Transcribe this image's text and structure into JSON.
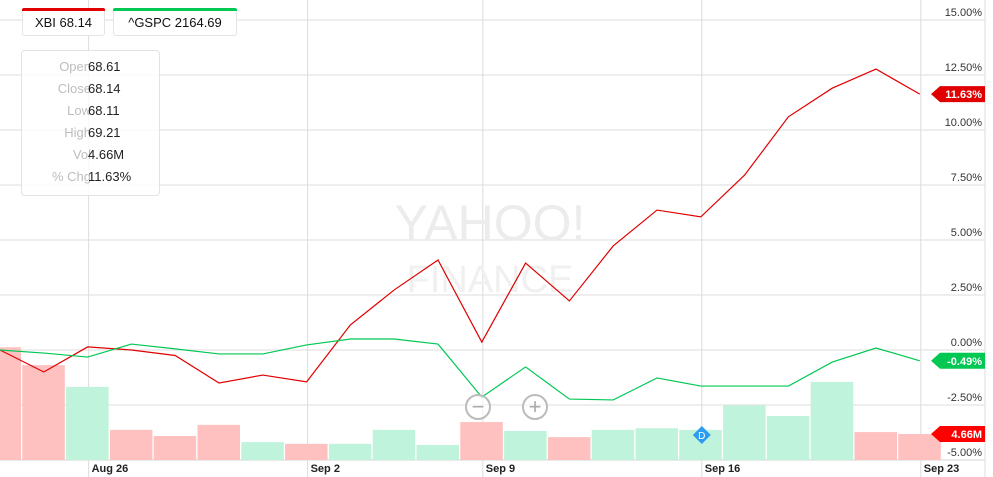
{
  "legend": [
    {
      "label": "XBI 68.14",
      "color": "#e00000"
    },
    {
      "label": "^GSPC 2164.69",
      "color": "#00c853"
    }
  ],
  "tooltip": [
    {
      "key": "Open",
      "value": "68.61"
    },
    {
      "key": "Close",
      "value": "68.14"
    },
    {
      "key": "Low",
      "value": "68.11"
    },
    {
      "key": "High",
      "value": "69.21"
    },
    {
      "key": "Vol",
      "value": "4.66M"
    },
    {
      "key": "% Chg",
      "value": "11.63%"
    }
  ],
  "watermark": {
    "line1": "YAHOO!",
    "line2": "FINANCE"
  },
  "controls": {
    "zoom_out": "−",
    "zoom_in": "+",
    "dividend_marker": "D"
  },
  "chart_data": {
    "type": "line",
    "x": [
      "Aug 24",
      "Aug 25",
      "Aug 26",
      "Aug 29",
      "Aug 30",
      "Aug 31",
      "Sep 1",
      "Sep 2",
      "Sep 6",
      "Sep 7",
      "Sep 8",
      "Sep 9",
      "Sep 12",
      "Sep 13",
      "Sep 14",
      "Sep 15",
      "Sep 16",
      "Sep 19",
      "Sep 20",
      "Sep 21",
      "Sep 22",
      "Sep 23"
    ],
    "xticks": [
      "Aug 26",
      "Sep 2",
      "Sep 9",
      "Sep 16",
      "Sep 23"
    ],
    "yticks": [
      "15.00%",
      "12.50%",
      "10.00%",
      "7.50%",
      "5.00%",
      "2.50%",
      "0.00%",
      "-2.50%",
      "-5.00%"
    ],
    "ylim": [
      -5,
      15
    ],
    "grid": true,
    "series": [
      {
        "name": "XBI",
        "color": "#e00000",
        "values": [
          0,
          -1.0,
          0.14,
          0,
          -0.25,
          -1.5,
          -1.14,
          -1.45,
          1.14,
          2.73,
          4.09,
          0.36,
          3.95,
          2.23,
          4.73,
          6.36,
          6.05,
          7.95,
          10.6,
          11.9,
          12.77,
          11.63
        ],
        "last_label": "11.63%"
      },
      {
        "name": "^GSPC",
        "color": "#00c853",
        "values": [
          0,
          -0.14,
          -0.32,
          0.27,
          0.05,
          -0.18,
          -0.18,
          0.23,
          0.5,
          0.5,
          0.27,
          -2.14,
          -0.77,
          -2.23,
          -2.27,
          -1.27,
          -1.64,
          -1.64,
          -1.64,
          -0.55,
          0.09,
          -0.49
        ],
        "last_label": "-0.49%"
      }
    ],
    "volume": {
      "unit": "M",
      "values": [
        20.2,
        17.0,
        13.1,
        5.4,
        4.3,
        6.3,
        3.2,
        2.9,
        2.9,
        5.4,
        2.7,
        6.8,
        5.2,
        4.1,
        5.4,
        5.7,
        5.4,
        9.8,
        7.9,
        14.0,
        5.0,
        4.66
      ],
      "direction": [
        "down",
        "down",
        "up",
        "down",
        "down",
        "down",
        "up",
        "down",
        "up",
        "up",
        "up",
        "down",
        "up",
        "down",
        "up",
        "up",
        "up",
        "up",
        "up",
        "up",
        "down",
        "down"
      ],
      "last_label": "4.66M",
      "up_color": "#bff3db",
      "down_color": "#ffc0c0"
    }
  }
}
